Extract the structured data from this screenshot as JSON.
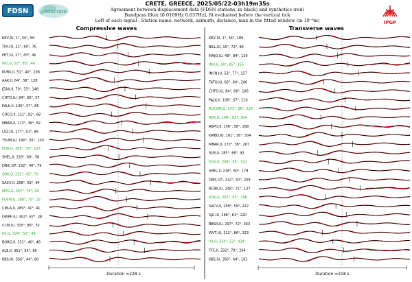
{
  "header": {
    "title": "CRETE, GREECE, 2025/05/22-03h19m35s",
    "line1": "Agreement between displacement data (FDSN stations, in black) and synthetics (red)",
    "line2": "Bandpass filter [0.0109Hz 0.037Hz], fit evaluated before the vertical tick",
    "line3": "Left of each signal : Station name, network, azimuth, distance, max in the fitted window (in 10⁻⁸m)"
  },
  "logos": {
    "fdsn": "FDSN",
    "geoscope": "geoscope",
    "ipgp": "IPGP"
  },
  "colors": {
    "data": "#000000",
    "synthetic": "#e60000",
    "highlight_label": "#22aa22",
    "ipgp": "#d7191c"
  },
  "chart_data": [
    {
      "type": "line",
      "title": "Compressive waves",
      "duration_label": "Duration =228 s",
      "series": [
        "data",
        "synthetics"
      ],
      "stations": [
        {
          "label": "KEV,IU, 1°, 34°, 99",
          "highlight": false
        },
        {
          "label": "TIXI,IU, 21°, 60°, 76",
          "highlight": false
        },
        {
          "label": "PET,IU, 27°, 83°, 45",
          "highlight": false
        },
        {
          "label": "INU,G, 50°, 85°, 46",
          "highlight": true
        },
        {
          "label": "KURK,II, 51°, 40°, 106",
          "highlight": false
        },
        {
          "label": "AAK,II, 64°, 38°, 128",
          "highlight": false
        },
        {
          "label": "JZAX,II, 70°, 33°, 148",
          "highlight": false
        },
        {
          "label": "CHTO,IU, 84°, 66°, 57",
          "highlight": false
        },
        {
          "label": "PALK,II, 106°, 57°, 85",
          "highlight": false
        },
        {
          "label": "COCO,II, 111°, 92°, 68",
          "highlight": false
        },
        {
          "label": "MBAR,II, 172°, 36°, 82",
          "highlight": false
        },
        {
          "label": "LSZ,IU, 177°, 51°, 88",
          "highlight": false
        },
        {
          "label": "TSUM,IU, 190°, 55°, 103",
          "highlight": false
        },
        {
          "label": "EDA,G, 208°, 35°, 125",
          "highlight": true
        },
        {
          "label": "SHEL,II, 216°, 60°, 58",
          "highlight": false
        },
        {
          "label": "DBIC,GT, 232°, 40°, 79",
          "highlight": false
        },
        {
          "label": "SOK,G, 252°, 43°, 70",
          "highlight": true
        },
        {
          "label": "SACV,II, 258°, 59°, 94",
          "highlight": false
        },
        {
          "label": "MPG,G, 267°, 79°, 29",
          "highlight": true
        },
        {
          "label": "FDFM,G, 280°, 75°, 25",
          "highlight": true
        },
        {
          "label": "CMLA,II, 289°, 41°, 41",
          "highlight": false
        },
        {
          "label": "DWPF,IU, 302°, 87°, 28",
          "highlight": false
        },
        {
          "label": "CCM,IU, 315°, 86°, 32",
          "highlight": false
        },
        {
          "label": "IVI,G, 324°, 52°, 48",
          "highlight": true
        },
        {
          "label": "BORG,II, 331°, 40°, 48",
          "highlight": false
        },
        {
          "label": "ALE,II, 351°, 55°, 69",
          "highlight": false
        },
        {
          "label": "KBS,IU, 356°, 44°, 80",
          "highlight": false
        }
      ]
    },
    {
      "type": "line",
      "title": "Transverse waves",
      "duration_label": "Duration =218 s",
      "series": [
        "data",
        "synthetics"
      ],
      "stations": [
        {
          "label": "KEV,IU, 1°, 34°, 189",
          "highlight": false
        },
        {
          "label": "BILL,IU, 15°, 72°, 86",
          "highlight": false
        },
        {
          "label": "MAJO,IU, 48°, 84°, 139",
          "highlight": false
        },
        {
          "label": "INU,G, 50°, 85°, 155",
          "highlight": true
        },
        {
          "label": "INCN,IU, 53°, 77°, 157",
          "highlight": false
        },
        {
          "label": "TATO,IU, 66°, 80°, 206",
          "highlight": false
        },
        {
          "label": "CHTO,IU, 84°, 66°, 106",
          "highlight": false
        },
        {
          "label": "PALK,II, 106°, 57°, 210",
          "highlight": false
        },
        {
          "label": "ROCAM,G, 141°, 66°, 229",
          "highlight": true
        },
        {
          "label": "RER,G, 149°, 63°, 304",
          "highlight": true
        },
        {
          "label": "ABPO,II, 156°, 58°, 268",
          "highlight": false
        },
        {
          "label": "KMBO,IU, 161°, 38°, 304",
          "highlight": false
        },
        {
          "label": "MBAR,II, 172°, 36°, 267",
          "highlight": false
        },
        {
          "label": "SUR,II, 185°, 68°, 92",
          "highlight": false
        },
        {
          "label": "EDA,G, 208°, 35°, 312",
          "highlight": true
        },
        {
          "label": "SHEL,II, 216°, 60°, 179",
          "highlight": false
        },
        {
          "label": "DBIC,GT, 232°, 40°, 259",
          "highlight": false
        },
        {
          "label": "RCBR,IU, 248°, 71°, 137",
          "highlight": false
        },
        {
          "label": "SOK,G, 252°, 43°, 296",
          "highlight": true
        },
        {
          "label": "SACV,II, 258°, 59°, 222",
          "highlight": false
        },
        {
          "label": "SJG,IU, 286°, 81°, 220",
          "highlight": false
        },
        {
          "label": "BBSR,IU, 297°, 72°, 363",
          "highlight": false
        },
        {
          "label": "WVT,IU, 312°, 86°, 323",
          "highlight": false
        },
        {
          "label": "IVI,G, 324°, 52°, 414",
          "highlight": true
        },
        {
          "label": "FFC,II, 332°, 79°, 264",
          "highlight": false
        },
        {
          "label": "KBS,IU, 356°, 44°, 162",
          "highlight": false
        }
      ]
    }
  ]
}
